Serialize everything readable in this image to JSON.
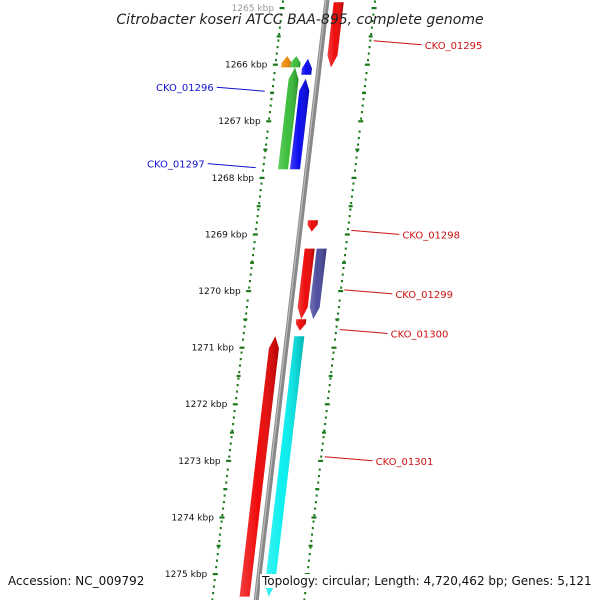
{
  "title": "Citrobacter koseri ATCC BAA-895, complete genome",
  "footer": {
    "accession": "Accession: NC_009792",
    "topology": "Topology: circular; Length: 4,720,462 bp; Genes: 5,121"
  },
  "colors": {
    "tick": "#1a7a1a",
    "backbone": "#888888",
    "forward_label": "#1111cc",
    "reverse_label": "#cc1111"
  },
  "chart_data": {
    "type": "genome-map",
    "axis_unit": "kbp",
    "axis_range": [
      1265,
      1275
    ],
    "tick_labels": [
      {
        "kbp": 1265,
        "label": "1265 kbp"
      },
      {
        "kbp": 1266,
        "label": "1266 kbp"
      },
      {
        "kbp": 1267,
        "label": "1267 kbp"
      },
      {
        "kbp": 1268,
        "label": "1268 kbp"
      },
      {
        "kbp": 1269,
        "label": "1269 kbp"
      },
      {
        "kbp": 1270,
        "label": "1270 kbp"
      },
      {
        "kbp": 1271,
        "label": "1271 kbp"
      },
      {
        "kbp": 1272,
        "label": "1272 kbp"
      },
      {
        "kbp": 1273,
        "label": "1273 kbp"
      },
      {
        "kbp": 1274,
        "label": "1274 kbp"
      },
      {
        "kbp": 1275,
        "label": "1275 kbp"
      }
    ],
    "features": [
      {
        "track": "reverse-1",
        "start_kbp": 1264.9,
        "end_kbp": 1266.05,
        "direction": "down",
        "color": "#ee0000"
      },
      {
        "track": "forward-3",
        "start_kbp": 1265.85,
        "end_kbp": 1266.05,
        "direction": "up",
        "color": "#ee8800"
      },
      {
        "track": "forward-2",
        "start_kbp": 1265.85,
        "end_kbp": 1266.05,
        "direction": "up",
        "color": "#33bb33"
      },
      {
        "track": "forward-2",
        "start_kbp": 1266.05,
        "end_kbp": 1267.85,
        "direction": "up",
        "color": "#33bb33"
      },
      {
        "track": "forward-1",
        "start_kbp": 1265.9,
        "end_kbp": 1266.18,
        "direction": "up",
        "color": "#0000ee"
      },
      {
        "track": "forward-1",
        "start_kbp": 1266.25,
        "end_kbp": 1267.85,
        "direction": "up",
        "color": "#0000ee"
      },
      {
        "track": "reverse-1",
        "start_kbp": 1268.75,
        "end_kbp": 1268.95,
        "direction": "down",
        "color": "#ee0000"
      },
      {
        "track": "reverse-1",
        "start_kbp": 1269.25,
        "end_kbp": 1270.5,
        "direction": "down",
        "color": "#ee0000"
      },
      {
        "track": "reverse-2",
        "start_kbp": 1269.25,
        "end_kbp": 1270.5,
        "direction": "down",
        "color": "#444499"
      },
      {
        "track": "reverse-1",
        "start_kbp": 1270.5,
        "end_kbp": 1270.7,
        "direction": "down",
        "color": "#ee0000"
      },
      {
        "track": "forward-1",
        "start_kbp": 1270.8,
        "end_kbp": 1275.4,
        "direction": "up",
        "color": "#ee0000"
      },
      {
        "track": "reverse-1",
        "start_kbp": 1270.8,
        "end_kbp": 1275.4,
        "direction": "down",
        "color": "#00eeee"
      }
    ],
    "gene_labels": [
      {
        "text": "CKO_01295",
        "kbp": 1265.65,
        "side": "right",
        "color": "#cc1111"
      },
      {
        "text": "CKO_01296",
        "kbp": 1266.4,
        "side": "left",
        "color": "#1111cc"
      },
      {
        "text": "CKO_01297",
        "kbp": 1267.75,
        "side": "left",
        "color": "#1111cc"
      },
      {
        "text": "CKO_01298",
        "kbp": 1269.0,
        "side": "right",
        "color": "#cc1111"
      },
      {
        "text": "CKO_01299",
        "kbp": 1270.05,
        "side": "right",
        "color": "#cc1111"
      },
      {
        "text": "CKO_01300",
        "kbp": 1270.75,
        "side": "right",
        "color": "#cc1111"
      },
      {
        "text": "CKO_01301",
        "kbp": 1273.0,
        "side": "right",
        "color": "#cc1111"
      }
    ]
  }
}
